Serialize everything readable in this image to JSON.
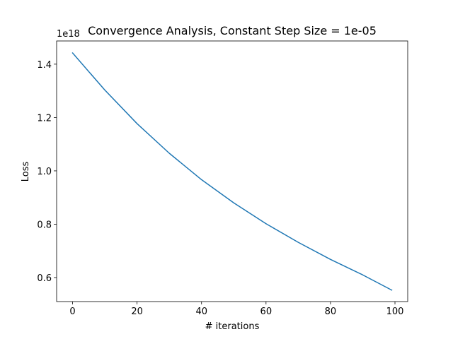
{
  "chart_data": {
    "type": "line",
    "title": "Convergence Analysis, Constant Step Size = 1e-05",
    "xlabel": "# iterations",
    "ylabel": "Loss",
    "y_offset_label": "1e18",
    "xlim": [
      -4.95,
      103.95
    ],
    "ylim": [
      0.51,
      1.487
    ],
    "x_ticks": [
      {
        "value": 0,
        "label": "0"
      },
      {
        "value": 20,
        "label": "20"
      },
      {
        "value": 40,
        "label": "40"
      },
      {
        "value": 60,
        "label": "60"
      },
      {
        "value": 80,
        "label": "80"
      },
      {
        "value": 100,
        "label": "100"
      }
    ],
    "y_ticks": [
      {
        "value": 0.6,
        "label": "0.6"
      },
      {
        "value": 0.8,
        "label": "0.8"
      },
      {
        "value": 1.0,
        "label": "1.0"
      },
      {
        "value": 1.2,
        "label": "1.2"
      },
      {
        "value": 1.4,
        "label": "1.4"
      }
    ],
    "grid": false,
    "series": [
      {
        "color": "#1f77b4",
        "x": [
          0,
          10,
          20,
          30,
          40,
          50,
          60,
          70,
          80,
          90,
          99
        ],
        "y": [
          1.442,
          1.303,
          1.177,
          1.066,
          0.967,
          0.88,
          0.802,
          0.732,
          0.668,
          0.61,
          0.553
        ]
      }
    ]
  }
}
